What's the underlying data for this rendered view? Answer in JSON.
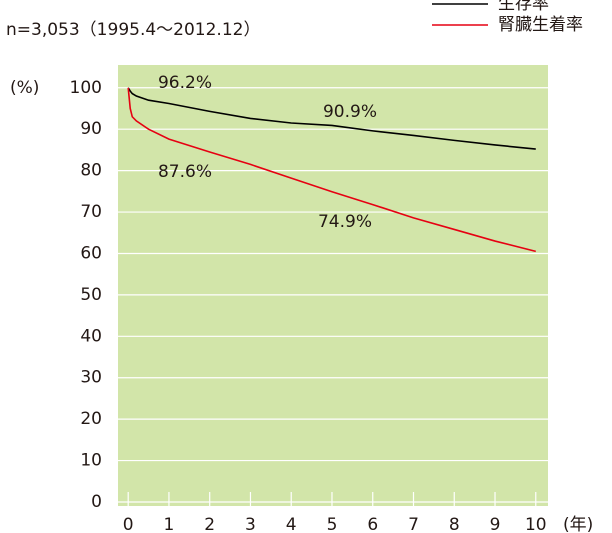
{
  "chart_data": {
    "type": "line",
    "subtitle": "n=3,053（1995.4～2012.12）",
    "y_label": "(%)",
    "x_label": "(年)",
    "x": [
      0,
      0.05,
      0.1,
      0.2,
      0.5,
      1,
      2,
      3,
      4,
      5,
      6,
      7,
      8,
      9,
      10
    ],
    "series": [
      {
        "name": "生存率",
        "color": "#000000",
        "values": [
          100,
          99.2,
          98.6,
          98,
          97,
          96.2,
          94.3,
          92.6,
          91.5,
          90.9,
          89.6,
          88.5,
          87.3,
          86.2,
          85.2
        ]
      },
      {
        "name": "腎臓生着率",
        "color": "#e60012",
        "values": [
          100,
          95,
          93,
          92,
          90,
          87.6,
          84.5,
          81.5,
          78.2,
          74.9,
          71.8,
          68.6,
          65.8,
          63,
          60.5
        ]
      }
    ],
    "annotations": [
      "96.2%",
      "90.9%",
      "87.6%",
      "74.9%"
    ],
    "xlim": [
      -0.25,
      10.3
    ],
    "xticks": [
      0,
      1,
      2,
      3,
      4,
      5,
      6,
      7,
      8,
      9,
      10
    ],
    "ylim": [
      0,
      105.5
    ],
    "yticks": [
      0,
      10,
      20,
      30,
      40,
      50,
      60,
      70,
      80,
      90,
      100
    ],
    "grid": true,
    "background": "#d2e5a9"
  }
}
